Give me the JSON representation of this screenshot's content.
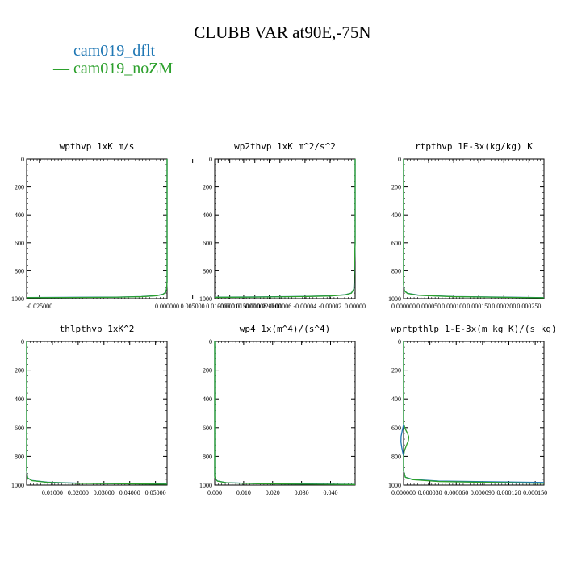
{
  "title": "CLUBB VAR at90E,-75N",
  "legend": [
    {
      "label": "— cam019_dflt",
      "color": "#1f77b4"
    },
    {
      "label": "— cam019_noZM",
      "color": "#2ca02c"
    }
  ],
  "chart_data": [
    {
      "type": "line",
      "title": "wpthvp   1xK m/s",
      "xticks": [
        "-0.025000",
        "0.020000",
        "0.015000",
        "0.010000",
        "0.005000",
        "0.000000"
      ],
      "xlim": [
        -0.0275,
        0.0
      ],
      "yticks": [
        "0",
        "200",
        "400",
        "600",
        "800",
        "1000"
      ],
      "ylim": [
        1000,
        0
      ],
      "series": [
        {
          "name": "cam019_dflt",
          "color": "#1f77b4",
          "points": [
            [
              -0.0275,
              992
            ],
            [
              -0.02,
              991
            ],
            [
              -0.01,
              989
            ],
            [
              -0.005,
              985
            ],
            [
              -0.002,
              978
            ],
            [
              -0.0008,
              968
            ],
            [
              -0.0003,
              955
            ],
            [
              -0.0001,
              930
            ],
            [
              0.0,
              880
            ],
            [
              0.0,
              0
            ]
          ]
        },
        {
          "name": "cam019_noZM",
          "color": "#2ca02c",
          "points": [
            [
              -0.0275,
              993
            ],
            [
              -0.02,
              992
            ],
            [
              -0.01,
              990
            ],
            [
              -0.005,
              986
            ],
            [
              -0.002,
              979
            ],
            [
              -0.0008,
              969
            ],
            [
              -0.0003,
              956
            ],
            [
              -0.0001,
              931
            ],
            [
              0.0,
              880
            ],
            [
              0.0,
              0
            ]
          ]
        }
      ]
    },
    {
      "type": "line",
      "title": "wp2thvp   1xK m^2/s^2",
      "xticks": [
        "-0.00010",
        "-0.00008",
        "-0.00006",
        "-0.00004",
        "-0.00002",
        "0.00000"
      ],
      "xlim": [
        -0.000112,
        0.0
      ],
      "yticks": [
        "0",
        "200",
        "400",
        "600",
        "800",
        "1000"
      ],
      "ylim": [
        1000,
        0
      ],
      "series": [
        {
          "name": "cam019_dflt",
          "color": "#1f77b4",
          "points": [
            [
              -0.000112,
              990
            ],
            [
              -8e-05,
              988
            ],
            [
              -4e-05,
              984
            ],
            [
              -2e-05,
              980
            ],
            [
              -8e-06,
              972
            ],
            [
              -3e-06,
              960
            ],
            [
              -1e-06,
              930
            ],
            [
              0.0,
              600
            ],
            [
              0.0,
              0
            ]
          ]
        },
        {
          "name": "cam019_noZM",
          "color": "#2ca02c",
          "points": [
            [
              -0.000112,
              991
            ],
            [
              -8e-05,
              989
            ],
            [
              -4e-05,
              985
            ],
            [
              -2e-05,
              981
            ],
            [
              -8e-06,
              973
            ],
            [
              -3e-06,
              961
            ],
            [
              -1e-06,
              931
            ],
            [
              0.0,
              600
            ],
            [
              0.0,
              0
            ]
          ]
        }
      ]
    },
    {
      "type": "line",
      "title": "rtpthvp   1E-3x(kg/kg) K",
      "xticks": [
        "0.000000",
        "0.000050",
        "0.000100",
        "0.000150",
        "0.000200",
        "0.000250"
      ],
      "xlim": [
        0.0,
        0.00028
      ],
      "yticks": [
        "0",
        "200",
        "400",
        "600",
        "800",
        "1000"
      ],
      "ylim": [
        1000,
        0
      ],
      "series": [
        {
          "name": "cam019_dflt",
          "color": "#1f77b4",
          "points": [
            [
              0.0,
              0
            ],
            [
              0.0,
              900
            ],
            [
              2e-06,
              945
            ],
            [
              8e-06,
              962
            ],
            [
              3e-05,
              975
            ],
            [
              0.0001,
              985
            ],
            [
              0.00028,
              993
            ]
          ]
        },
        {
          "name": "cam019_noZM",
          "color": "#2ca02c",
          "points": [
            [
              0.0,
              0
            ],
            [
              0.0,
              900
            ],
            [
              2e-06,
              946
            ],
            [
              8e-06,
              963
            ],
            [
              3e-05,
              976
            ],
            [
              0.0001,
              986
            ],
            [
              0.00028,
              994
            ]
          ]
        }
      ]
    },
    {
      "type": "line",
      "title": "thlpthvp   1xK^2",
      "xticks": [
        "0.01000",
        "0.02000",
        "0.03000",
        "0.04000",
        "0.05000"
      ],
      "xlim": [
        0.0,
        0.0545
      ],
      "yticks": [
        "0",
        "200",
        "400",
        "600",
        "800",
        "1000"
      ],
      "ylim": [
        1000,
        0
      ],
      "series": [
        {
          "name": "cam019_dflt",
          "color": "#1f77b4",
          "points": [
            [
              0.0,
              0
            ],
            [
              0.0,
              900
            ],
            [
              0.0004,
              950
            ],
            [
              0.002,
              968
            ],
            [
              0.008,
              980
            ],
            [
              0.02,
              987
            ],
            [
              0.0545,
              993
            ]
          ]
        },
        {
          "name": "cam019_noZM",
          "color": "#2ca02c",
          "points": [
            [
              0.0,
              0
            ],
            [
              0.0,
              900
            ],
            [
              0.0004,
              951
            ],
            [
              0.002,
              969
            ],
            [
              0.008,
              981
            ],
            [
              0.02,
              988
            ],
            [
              0.0545,
              994
            ]
          ]
        }
      ]
    },
    {
      "type": "line",
      "title": "wp4   1x(m^4)/(s^4)",
      "xticks": [
        "0.000",
        "0.010",
        "0.020",
        "0.030",
        "0.040"
      ],
      "xlim": [
        0.0,
        0.0485
      ],
      "yticks": [
        "0",
        "200",
        "400",
        "600",
        "800",
        "1000"
      ],
      "ylim": [
        1000,
        0
      ],
      "series": [
        {
          "name": "cam019_dflt",
          "color": "#1f77b4",
          "points": [
            [
              0.0,
              0
            ],
            [
              0.0,
              940
            ],
            [
              0.0003,
              960
            ],
            [
              0.001,
              972
            ],
            [
              0.004,
              983
            ],
            [
              0.015,
              990
            ],
            [
              0.0485,
              995
            ]
          ]
        },
        {
          "name": "cam019_noZM",
          "color": "#2ca02c",
          "points": [
            [
              0.0,
              0
            ],
            [
              0.0,
              940
            ],
            [
              0.0003,
              961
            ],
            [
              0.001,
              973
            ],
            [
              0.004,
              984
            ],
            [
              0.015,
              991
            ],
            [
              0.0485,
              996
            ]
          ]
        }
      ]
    },
    {
      "type": "line",
      "title": "wprtpthlp   1-E-3x(m kg K)/(s kg)",
      "xticks": [
        "0.000000",
        "0.000030",
        "0.000060",
        "0.000090",
        "0.000120",
        "0.000150"
      ],
      "xlim": [
        0.0,
        0.00016
      ],
      "yticks": [
        "0",
        "200",
        "400",
        "600",
        "800",
        "1000"
      ],
      "ylim": [
        1000,
        0
      ],
      "series": [
        {
          "name": "cam019_dflt",
          "color": "#1f77b4",
          "points": [
            [
              0.0,
              0
            ],
            [
              0.0,
              500
            ],
            [
              0.0,
              580
            ],
            [
              -1.5e-06,
              620
            ],
            [
              -2.8e-06,
              660
            ],
            [
              -3e-06,
              700
            ],
            [
              -2e-06,
              740
            ],
            [
              -1e-06,
              770
            ],
            [
              0.0,
              800
            ],
            [
              0.0,
              900
            ],
            [
              2e-06,
              945
            ],
            [
              1e-05,
              960
            ],
            [
              4e-05,
              972
            ],
            [
              0.00016,
              982
            ]
          ]
        },
        {
          "name": "cam019_noZM",
          "color": "#2ca02c",
          "points": [
            [
              0.0,
              0
            ],
            [
              0.0,
              500
            ],
            [
              0.0,
              570
            ],
            [
              2e-06,
              610
            ],
            [
              4.5e-06,
              640
            ],
            [
              6e-06,
              665
            ],
            [
              5.5e-06,
              690
            ],
            [
              3.5e-06,
              720
            ],
            [
              1e-06,
              760
            ],
            [
              0.0,
              800
            ],
            [
              0.0,
              900
            ],
            [
              2e-06,
              946
            ],
            [
              1e-05,
              962
            ],
            [
              4e-05,
              975
            ],
            [
              0.00016,
              988
            ]
          ]
        }
      ]
    }
  ]
}
